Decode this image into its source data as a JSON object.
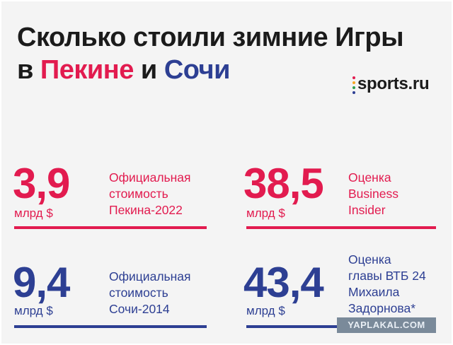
{
  "header": {
    "title_line1": "Сколько стоили зимние Игры",
    "title_prefix": "в ",
    "title_city1": "Пекине",
    "title_conj": " и ",
    "title_city2": "Сочи"
  },
  "logo": {
    "text": "sports.ru",
    "dot_colors": [
      "#e21b4f",
      "#f5a623",
      "#2d9e4f",
      "#2d3f93"
    ]
  },
  "stats": [
    {
      "value": "3,9",
      "unit": "млрд $",
      "description": [
        "Официальная",
        "стоимость",
        "Пекина-2022"
      ],
      "color": "#e21b4f"
    },
    {
      "value": "38,5",
      "unit": "млрд $",
      "description": [
        "Оценка",
        "Business",
        "Insider"
      ],
      "color": "#e21b4f"
    },
    {
      "value": "9,4",
      "unit": "млрд $",
      "description": [
        "Официальная",
        "стоимость",
        "Сочи-2014"
      ],
      "color": "#2d3f93"
    },
    {
      "value": "43,4",
      "unit": "млрд $",
      "description": [
        "Оценка",
        "главы ВТБ 24",
        "Михаила",
        "Задорнова*"
      ],
      "color": "#2d3f93"
    }
  ],
  "watermark": "YAPLAKAL.COM",
  "colors": {
    "accent_red": "#e21b4f",
    "accent_blue": "#2d3f93",
    "background": "#f4f4f4",
    "text": "#1b1b1b"
  }
}
